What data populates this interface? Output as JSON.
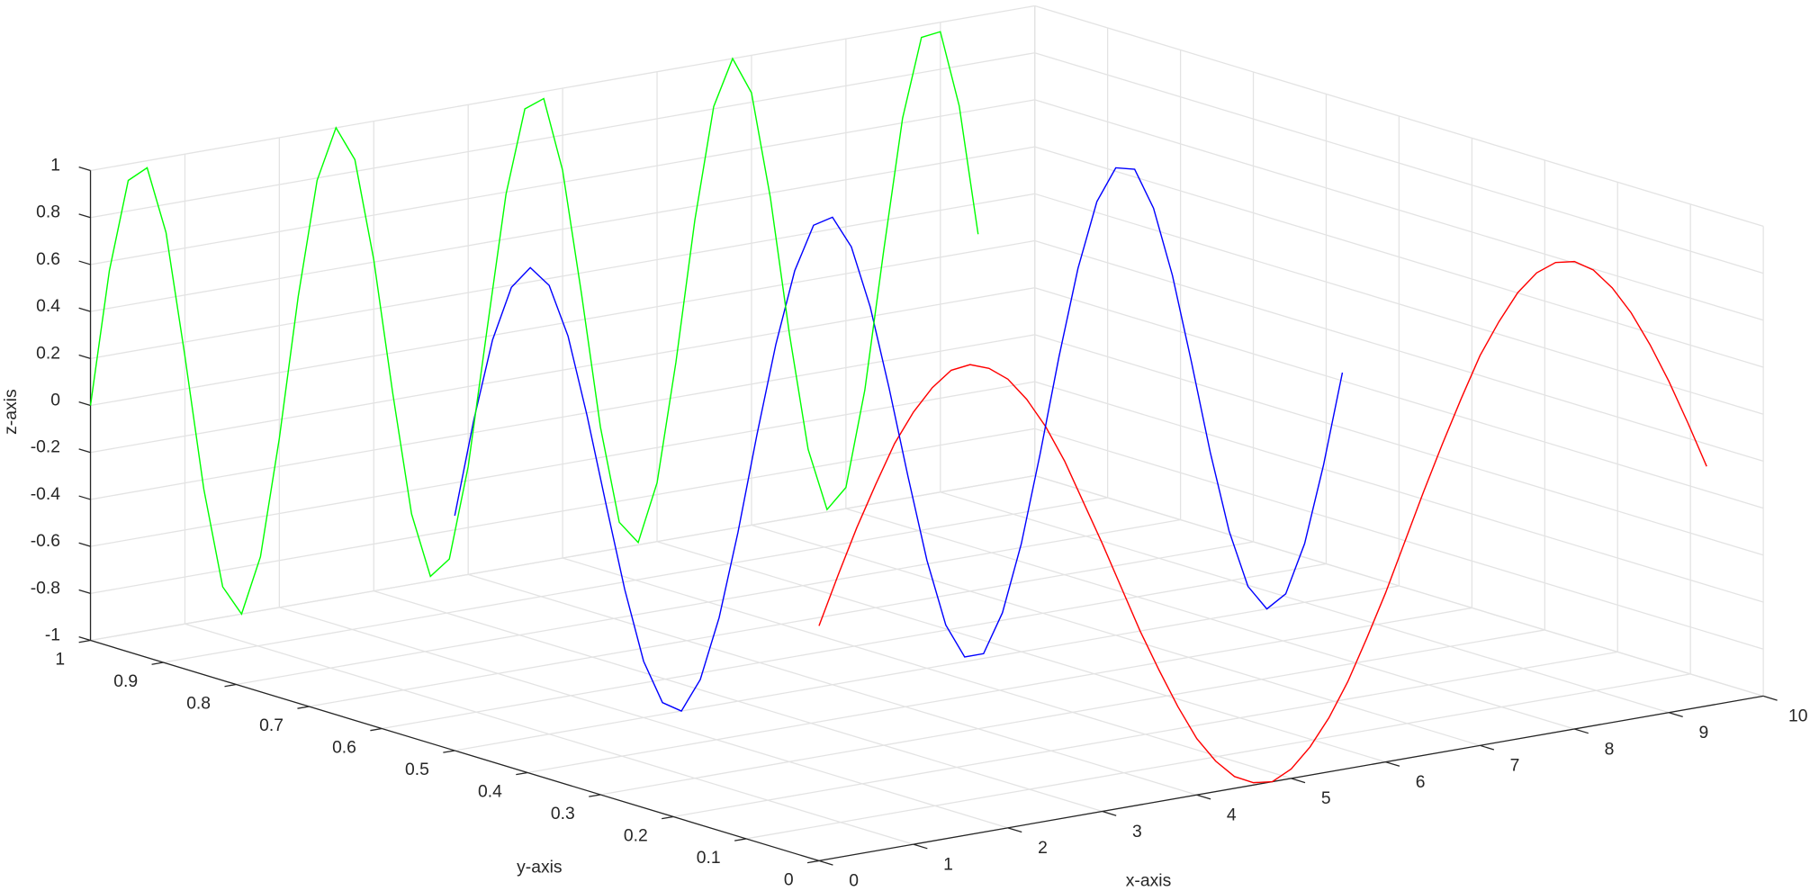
{
  "chart_data": {
    "type": "line3d",
    "xlabel": "x-axis",
    "ylabel": "y-axis",
    "zlabel": "z-axis",
    "xlim": [
      0,
      10
    ],
    "ylim": [
      0,
      1
    ],
    "zlim": [
      -1,
      1
    ],
    "xticks": [
      0,
      1,
      2,
      3,
      4,
      5,
      6,
      7,
      8,
      9,
      10
    ],
    "yticks": [
      0,
      0.1,
      0.2,
      0.3,
      0.4,
      0.5,
      0.6,
      0.7,
      0.8,
      0.9,
      1
    ],
    "zticks": [
      -1,
      -0.8,
      -0.6,
      -0.4,
      -0.2,
      0,
      0.2,
      0.4,
      0.6,
      0.8,
      1
    ],
    "grid": true,
    "x": [
      0,
      0.2,
      0.4,
      0.6,
      0.8,
      1.0,
      1.2,
      1.4,
      1.6,
      1.8,
      2.0,
      2.2,
      2.4,
      2.6,
      2.8,
      3.0,
      3.2,
      3.4,
      3.6,
      3.8,
      4.0,
      4.2,
      4.4,
      4.6,
      4.8,
      5.0,
      5.2,
      5.4,
      5.6,
      5.8,
      6.0,
      6.2,
      6.4,
      6.6,
      6.8,
      7.0,
      7.2,
      7.4,
      7.6,
      7.8,
      8.0,
      8.2,
      8.4,
      8.6,
      8.8,
      9.0,
      9.2,
      9.4
    ],
    "series": [
      {
        "color": "#ff0000",
        "y": 0,
        "z": [
          0,
          0.2,
          0.39,
          0.56,
          0.72,
          0.84,
          0.93,
          0.99,
          1.0,
          0.97,
          0.91,
          0.81,
          0.68,
          0.52,
          0.33,
          0.14,
          -0.06,
          -0.26,
          -0.44,
          -0.61,
          -0.76,
          -0.87,
          -0.95,
          -0.99,
          -1.0,
          -0.96,
          -0.88,
          -0.77,
          -0.63,
          -0.46,
          -0.28,
          -0.08,
          0.12,
          0.31,
          0.49,
          0.66,
          0.79,
          0.9,
          0.97,
          1.0,
          0.99,
          0.94,
          0.85,
          0.73,
          0.58,
          0.41,
          0.22,
          0.02
        ]
      },
      {
        "color": "#0000ff",
        "y": 0.5,
        "z": [
          0,
          0.39,
          0.72,
          0.93,
          1.0,
          0.91,
          0.68,
          0.33,
          -0.06,
          -0.44,
          -0.76,
          -0.95,
          -1.0,
          -0.88,
          -0.63,
          -0.28,
          0.12,
          0.49,
          0.79,
          0.97,
          0.99,
          0.85,
          0.58,
          0.22,
          -0.17,
          -0.54,
          -0.83,
          -0.98,
          -0.98,
          -0.82,
          -0.54,
          -0.17,
          0.23,
          0.59,
          0.86,
          0.99,
          0.97,
          0.79,
          0.49,
          0.11,
          -0.29,
          -0.64,
          -0.89,
          -1.0,
          -0.95,
          -0.75,
          -0.43,
          -0.05
        ]
      },
      {
        "color": "#00ff00",
        "y": 1,
        "z": [
          0,
          0.56,
          0.93,
          0.97,
          0.68,
          0.14,
          -0.44,
          -0.87,
          -1.0,
          -0.77,
          -0.28,
          0.31,
          0.79,
          1.0,
          0.85,
          0.41,
          -0.17,
          -0.7,
          -0.98,
          -0.92,
          -0.54,
          0.03,
          0.59,
          0.94,
          0.97,
          0.65,
          0.11,
          -0.47,
          -0.89,
          -0.99,
          -0.75,
          -0.25,
          0.34,
          0.81,
          1.0,
          0.84,
          0.38,
          -0.21,
          -0.72,
          -0.99,
          -0.91,
          -0.51,
          0.07,
          0.62,
          0.95,
          0.96,
          0.63,
          0.07
        ]
      }
    ]
  }
}
